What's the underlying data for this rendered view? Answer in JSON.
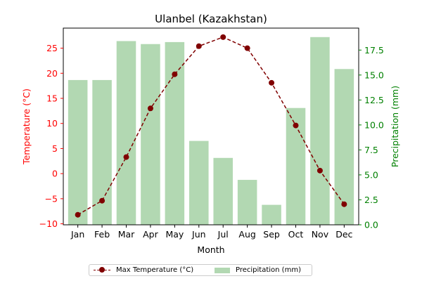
{
  "chart_data": {
    "type": "bar+line",
    "title": "Ulanbel (Kazakhstan)",
    "xlabel": "Month",
    "categories": [
      "Jan",
      "Feb",
      "Mar",
      "Apr",
      "May",
      "Jun",
      "Jul",
      "Aug",
      "Sep",
      "Oct",
      "Nov",
      "Dec"
    ],
    "left_axis": {
      "label": "Temperature (°C)",
      "color": "#ff0000",
      "ylim": [
        -10.2,
        29.0
      ],
      "ticks": [
        -10,
        -5,
        0,
        5,
        10,
        15,
        20,
        25
      ],
      "tick_labels": [
        "−10",
        "−5",
        "0",
        "5",
        "10",
        "15",
        "20",
        "25"
      ]
    },
    "right_axis": {
      "label": "Precipitation (mm)",
      "color": "#008000",
      "ylim": [
        0,
        19.7
      ],
      "ticks": [
        0,
        2.5,
        5,
        7.5,
        10,
        12.5,
        15,
        17.5
      ],
      "tick_labels": [
        "0.0",
        "2.5",
        "5.0",
        "7.5",
        "10.0",
        "12.5",
        "15.0",
        "17.5"
      ]
    },
    "series": [
      {
        "name": "Max Temperature (°C)",
        "kind": "line",
        "axis": "left",
        "color": "#800000",
        "values": [
          -8.2,
          -5.4,
          3.3,
          13.0,
          19.8,
          25.4,
          27.2,
          25.0,
          18.1,
          9.6,
          0.6,
          -6.1
        ]
      },
      {
        "name": "Precipitation (mm)",
        "kind": "bar",
        "axis": "right",
        "color": "#b2d8b2",
        "values": [
          14.5,
          14.5,
          18.4,
          18.1,
          18.3,
          8.4,
          6.7,
          4.5,
          2.0,
          11.7,
          18.8,
          15.6
        ]
      }
    ],
    "legend": {
      "position": "bottom-center"
    },
    "grid": false
  }
}
